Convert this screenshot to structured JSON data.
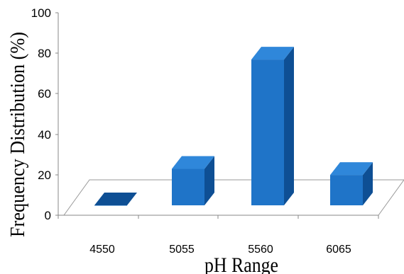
{
  "chart_data": {
    "type": "bar",
    "categories": [
      "4550",
      "5055",
      "5560",
      "6065"
    ],
    "values": [
      0,
      18,
      72,
      15
    ],
    "xlabel": "pH Range",
    "ylabel": "Frequency Distribution (%)",
    "ylim": [
      0,
      100
    ],
    "yticks": [
      "0",
      "20",
      "40",
      "60",
      "80",
      "100"
    ],
    "grid": false,
    "bar_color": "#1f74c8",
    "bar_top_color": "#2f87da",
    "bar_side_color": "#0e4f94"
  }
}
